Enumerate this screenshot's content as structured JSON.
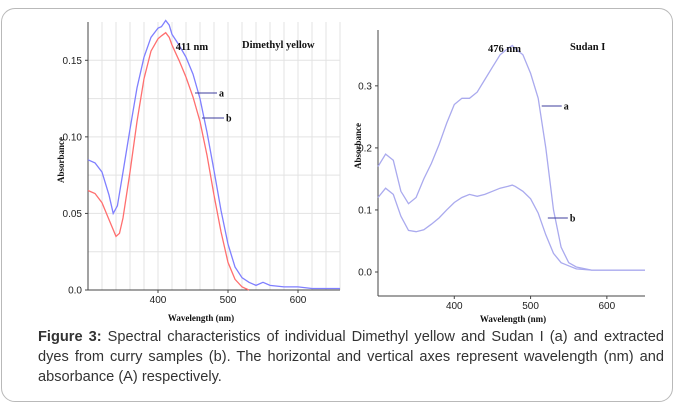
{
  "caption": {
    "label": "Figure 3:",
    "text": " Spectral characteristics of individual Dimethyl yellow and Sudan I (a) and extracted dyes from curry samples (b). The horizontal and vertical axes represent wavelength (nm) and absorbance (A) respectively."
  },
  "colors": {
    "series_a_left": "#7f7fff",
    "series_b_left": "#ff6f6f",
    "series_right": "#aaaaee",
    "axis": "#333333",
    "grid": "#e3e3e3"
  },
  "chart_data": [
    {
      "type": "line",
      "title": "Dimethyl yellow",
      "xlabel": "Wavelength (nm)",
      "ylabel": "Absorbance",
      "xlim": [
        300,
        660
      ],
      "ylim": [
        0,
        0.175
      ],
      "xticks": [
        400,
        500,
        600
      ],
      "yticks": [
        0.0,
        0.05,
        0.1,
        0.15
      ],
      "ytick_labels": [
        "0.0",
        "0.05",
        "0.10",
        "0.15"
      ],
      "grid": true,
      "peak_annotation": {
        "text": "411 nm",
        "x": 411
      },
      "series": [
        {
          "name": "a",
          "x": [
            300,
            310,
            320,
            330,
            336,
            342,
            350,
            360,
            370,
            380,
            390,
            400,
            405,
            411,
            416,
            420,
            430,
            440,
            450,
            460,
            470,
            480,
            490,
            500,
            510,
            520,
            530,
            540,
            550,
            560,
            580,
            600,
            620,
            640,
            660
          ],
          "y": [
            0.085,
            0.083,
            0.077,
            0.062,
            0.05,
            0.055,
            0.077,
            0.105,
            0.132,
            0.152,
            0.165,
            0.171,
            0.172,
            0.176,
            0.173,
            0.167,
            0.16,
            0.152,
            0.141,
            0.125,
            0.103,
            0.078,
            0.052,
            0.03,
            0.015,
            0.008,
            0.005,
            0.003,
            0.005,
            0.003,
            0.002,
            0.002,
            0.001,
            0.001,
            0.001
          ]
        },
        {
          "name": "b",
          "x": [
            300,
            310,
            320,
            330,
            340,
            345,
            350,
            360,
            370,
            380,
            390,
            400,
            405,
            411,
            416,
            420,
            430,
            440,
            450,
            460,
            470,
            480,
            490,
            500,
            510,
            520,
            525,
            530
          ],
          "y": [
            0.065,
            0.063,
            0.057,
            0.046,
            0.035,
            0.037,
            0.047,
            0.077,
            0.11,
            0.138,
            0.156,
            0.164,
            0.166,
            0.168,
            0.165,
            0.16,
            0.15,
            0.139,
            0.126,
            0.11,
            0.088,
            0.062,
            0.038,
            0.018,
            0.007,
            0.002,
            0.001,
            0.0
          ]
        }
      ],
      "series_labels": [
        "a",
        "b"
      ]
    },
    {
      "type": "line",
      "title": "Sudan I",
      "xlabel": "Wavelength (nm)",
      "ylabel": "Absorbance",
      "xlim": [
        300,
        650
      ],
      "ylim": [
        0,
        0.39
      ],
      "xticks": [
        400,
        500,
        600
      ],
      "yticks": [
        0.0,
        0.1,
        0.2,
        0.3
      ],
      "ytick_labels": [
        "0.0",
        "0.1",
        "0.2",
        "0.3"
      ],
      "grid": false,
      "peak_annotation": {
        "text": "476 nm",
        "x": 476
      },
      "series": [
        {
          "name": "a",
          "x": [
            300,
            310,
            320,
            330,
            340,
            350,
            360,
            370,
            380,
            390,
            400,
            410,
            420,
            430,
            440,
            450,
            460,
            470,
            476,
            480,
            490,
            500,
            510,
            520,
            530,
            540,
            550,
            560,
            580,
            600,
            620,
            650
          ],
          "y": [
            0.17,
            0.19,
            0.18,
            0.13,
            0.11,
            0.12,
            0.15,
            0.175,
            0.205,
            0.24,
            0.27,
            0.28,
            0.28,
            0.29,
            0.31,
            0.33,
            0.35,
            0.36,
            0.365,
            0.36,
            0.35,
            0.32,
            0.28,
            0.2,
            0.1,
            0.04,
            0.015,
            0.008,
            0.003,
            0.003,
            0.003,
            0.003
          ]
        },
        {
          "name": "b",
          "x": [
            300,
            310,
            320,
            330,
            340,
            350,
            360,
            370,
            380,
            390,
            400,
            410,
            420,
            430,
            440,
            450,
            460,
            470,
            476,
            480,
            490,
            500,
            510,
            520,
            530,
            540,
            550,
            560,
            580,
            600,
            620,
            650
          ],
          "y": [
            0.12,
            0.135,
            0.125,
            0.09,
            0.067,
            0.065,
            0.068,
            0.077,
            0.087,
            0.1,
            0.112,
            0.12,
            0.125,
            0.122,
            0.125,
            0.13,
            0.135,
            0.138,
            0.14,
            0.138,
            0.13,
            0.118,
            0.095,
            0.06,
            0.03,
            0.015,
            0.01,
            0.005,
            0.003,
            0.003,
            0.003,
            0.003
          ]
        }
      ],
      "series_labels": [
        "a",
        "b"
      ]
    }
  ]
}
